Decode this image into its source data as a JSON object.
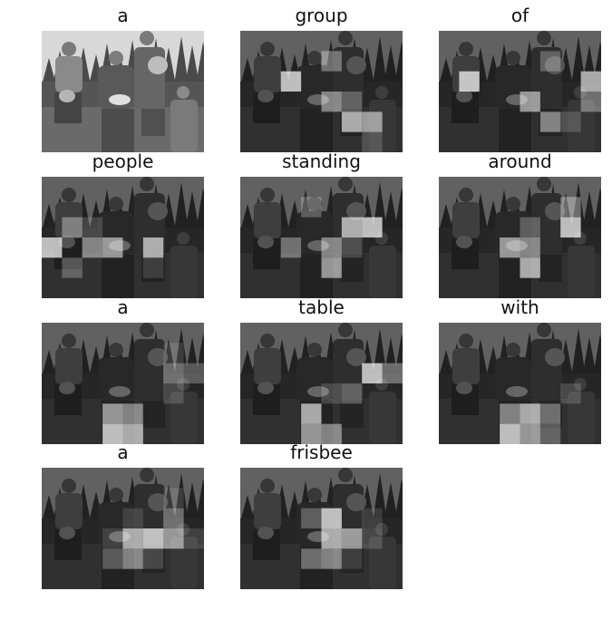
{
  "captions": [
    "a",
    "group",
    "of",
    "people",
    "standing",
    "around",
    "a",
    "table",
    "with",
    "a",
    "frisbee"
  ],
  "attention": [
    null,
    [
      [
        2,
        2
      ],
      [
        4,
        5
      ],
      [
        4,
        6
      ],
      [
        3,
        4
      ],
      [
        1,
        4
      ],
      [
        3,
        5
      ],
      [
        5,
        6
      ]
    ],
    [
      [
        2,
        1
      ],
      [
        2,
        7
      ],
      [
        3,
        4
      ],
      [
        4,
        5
      ],
      [
        3,
        7
      ],
      [
        1,
        5
      ],
      [
        4,
        6
      ]
    ],
    [
      [
        3,
        0
      ],
      [
        3,
        5
      ],
      [
        3,
        3
      ],
      [
        3,
        2
      ],
      [
        2,
        1
      ],
      [
        4,
        1
      ],
      [
        2,
        2
      ],
      [
        4,
        5
      ]
    ],
    [
      [
        2,
        6
      ],
      [
        2,
        5
      ],
      [
        4,
        4
      ],
      [
        3,
        4
      ],
      [
        3,
        2
      ],
      [
        1,
        3
      ],
      [
        3,
        5
      ]
    ],
    [
      [
        2,
        6
      ],
      [
        4,
        4
      ],
      [
        3,
        3
      ],
      [
        3,
        4
      ],
      [
        1,
        6
      ],
      [
        2,
        4
      ]
    ],
    [
      [
        5,
        3
      ],
      [
        5,
        4
      ],
      [
        4,
        3
      ],
      [
        4,
        4
      ],
      [
        2,
        6
      ],
      [
        2,
        7
      ],
      [
        3,
        6
      ],
      [
        1,
        6
      ]
    ],
    [
      [
        2,
        6
      ],
      [
        4,
        3
      ],
      [
        5,
        3
      ],
      [
        5,
        4
      ],
      [
        2,
        7
      ],
      [
        3,
        5
      ],
      [
        3,
        4
      ]
    ],
    [
      [
        5,
        3
      ],
      [
        4,
        4
      ],
      [
        5,
        4
      ],
      [
        4,
        3
      ],
      [
        4,
        5
      ],
      [
        5,
        5
      ],
      [
        3,
        6
      ]
    ],
    [
      [
        3,
        5
      ],
      [
        3,
        4
      ],
      [
        3,
        6
      ],
      [
        4,
        4
      ],
      [
        2,
        6
      ],
      [
        4,
        3
      ],
      [
        4,
        5
      ],
      [
        2,
        4
      ],
      [
        3,
        3
      ],
      [
        3,
        7
      ],
      [
        1,
        6
      ]
    ],
    [
      [
        2,
        4
      ],
      [
        3,
        4
      ],
      [
        3,
        5
      ],
      [
        4,
        4
      ],
      [
        4,
        3
      ],
      [
        2,
        3
      ],
      [
        3,
        6
      ],
      [
        4,
        5
      ],
      [
        2,
        6
      ]
    ]
  ]
}
